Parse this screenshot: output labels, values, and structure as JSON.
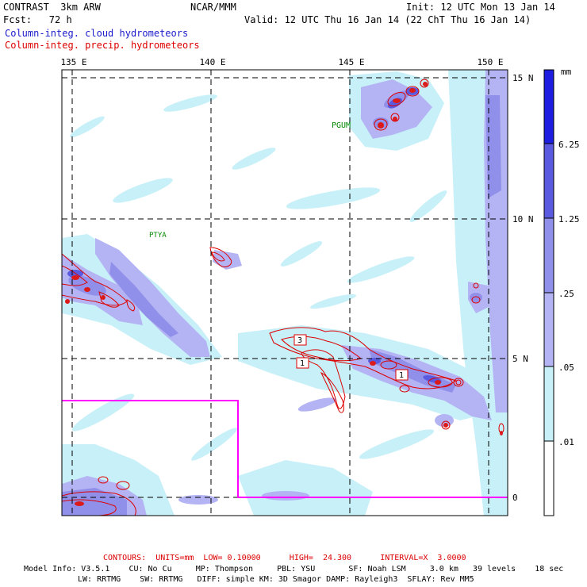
{
  "header": {
    "model": "CONTRAST  3km ARW",
    "org": "NCAR/MMM",
    "init": "Init: 12 UTC Mon 13 Jan 14",
    "fcst": "Fcst:   72 h",
    "valid": "Valid: 12 UTC Thu 16 Jan 14 (22 ChT Thu 16 Jan 14)",
    "field1": "Column-integ. cloud hydrometeors",
    "field2": "Column-integ. precip. hydrometeors"
  },
  "colors": {
    "field1_text": "#1a1acc",
    "field2_text": "#dd0000",
    "contour": "#dd0000",
    "box": "#ff00ff",
    "shade_001": "#c8f0f8",
    "shade_005": "#b4b4f4",
    "shade_025": "#9090ea",
    "shade_125": "#5a5ae0",
    "shade_625": "#1e1ee0"
  },
  "map": {
    "lon_labels": [
      "135 E",
      "140 E",
      "145 E",
      "150 E"
    ],
    "lat_labels": [
      "15 N",
      "10 N",
      "5 N",
      "0"
    ],
    "stations": [
      "PGUM",
      "PTYA"
    ],
    "contour_labels": [
      "3",
      "1",
      "1"
    ]
  },
  "colorbar": {
    "unit": "mm",
    "levels": [
      "6.25",
      "1.25",
      ".25",
      ".05",
      ".01"
    ]
  },
  "footer": {
    "contours": "CONTOURS:  UNITS=mm  LOW= 0.10000      HIGH=  24.300      INTERVAL=X  3.0000",
    "info1": "Model Info: V3.5.1    CU: No Cu     MP: Thompson     PBL: YSU       SF: Noah LSM     3.0 km   39 levels    18 sec",
    "info2": "LW: RRTMG    SW: RRTMG   DIFF: simple KM: 3D Smagor DAMP: Rayleigh3  SFLAY: Rev MM5"
  }
}
